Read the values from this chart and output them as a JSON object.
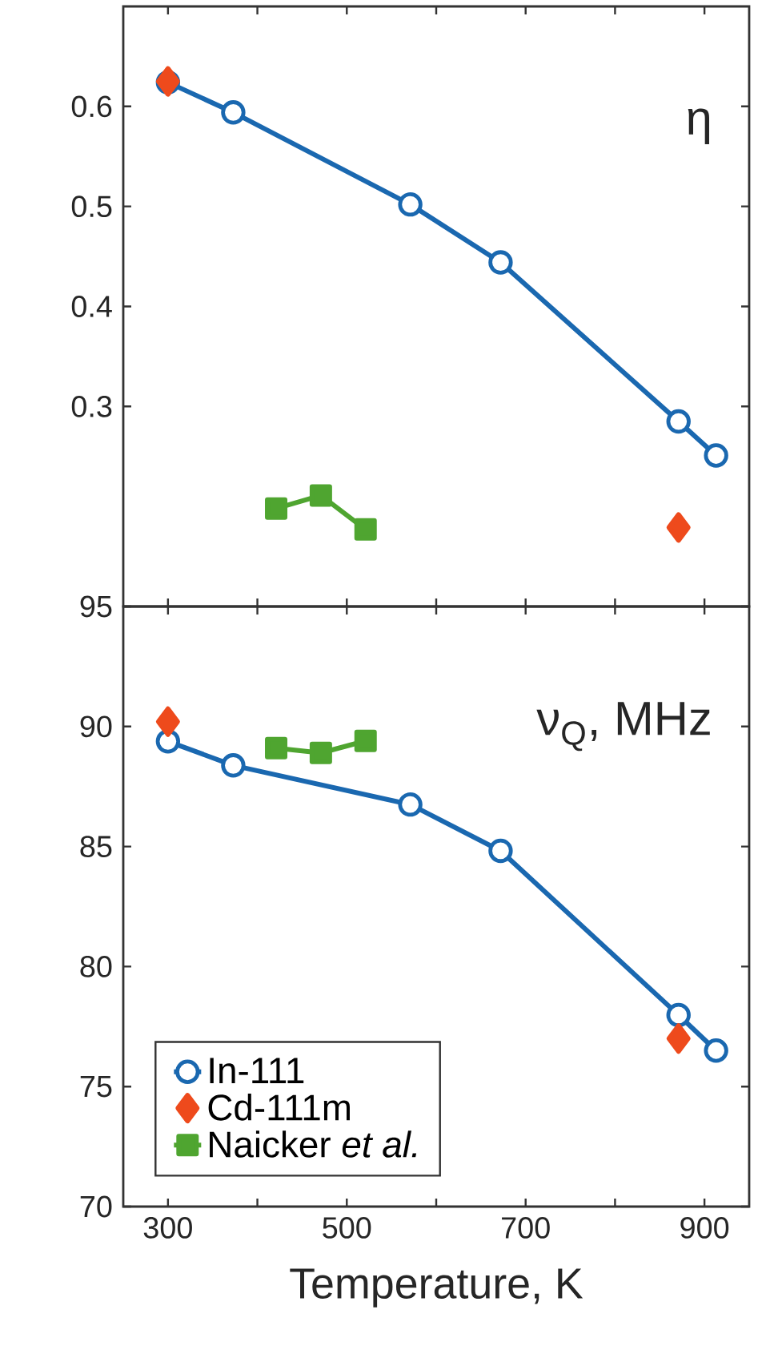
{
  "chart_data": [
    {
      "type": "line",
      "annotations": [
        "η"
      ],
      "xlim": [
        250,
        950
      ],
      "ylim": [
        0.1,
        0.7
      ],
      "xticks": [
        300,
        {
          "value": 400,
          "label": null
        },
        500,
        {
          "value": 600,
          "label": null
        },
        700,
        {
          "value": 800,
          "label": null
        },
        900
      ],
      "yticks": [
        0.3,
        0.4,
        0.5,
        0.6
      ],
      "tick_labels": "y",
      "series": [
        {
          "marker": "circle",
          "line_style": "solid",
          "color": "#1a68b0",
          "x": [
            300,
            373,
            571,
            672,
            871,
            913
          ],
          "values": [
            0.624,
            0.594,
            0.502,
            0.444,
            0.285,
            0.251
          ]
        },
        {
          "type": "scatter",
          "marker": "diamond",
          "color": "#ee4a1c",
          "x": [
            300,
            871
          ],
          "values": [
            0.625,
            0.179
          ]
        },
        {
          "marker": "square",
          "line_style": "solid",
          "color": "#4fa530",
          "x": [
            421,
            471,
            521
          ],
          "values": [
            0.198,
            0.211,
            0.177
          ]
        }
      ]
    },
    {
      "type": "line",
      "annotations": [
        "ν$_{Q}$, MHz"
      ],
      "xlabel": "Temperature, K",
      "xlim": [
        250,
        950
      ],
      "ylim": [
        70,
        95
      ],
      "xticks": [
        300,
        {
          "value": 400,
          "label": null
        },
        500,
        {
          "value": 600,
          "label": null
        },
        700,
        {
          "value": 800,
          "label": null
        },
        900
      ],
      "yticks": [
        70,
        75,
        80,
        85,
        90,
        95
      ],
      "legend": "bottom left",
      "series": [
        {
          "name": "In-111",
          "marker": "circle",
          "line_style": "solid",
          "color": "#1a68b0",
          "x": [
            300,
            373,
            571,
            672,
            871,
            913
          ],
          "values": [
            89.38,
            88.38,
            86.75,
            84.82,
            77.98,
            76.5
          ]
        },
        {
          "type": "scatter",
          "name": "Cd-111m",
          "marker": "diamond",
          "color": "#ee4a1c",
          "x": [
            300,
            871
          ],
          "values": [
            90.2,
            77.0
          ]
        },
        {
          "name": "Naicker *et al.*",
          "marker": "square",
          "line_style": "solid",
          "color": "#4fa530",
          "x": [
            421,
            471,
            521
          ],
          "values": [
            89.1,
            88.9,
            89.4
          ]
        }
      ]
    }
  ]
}
